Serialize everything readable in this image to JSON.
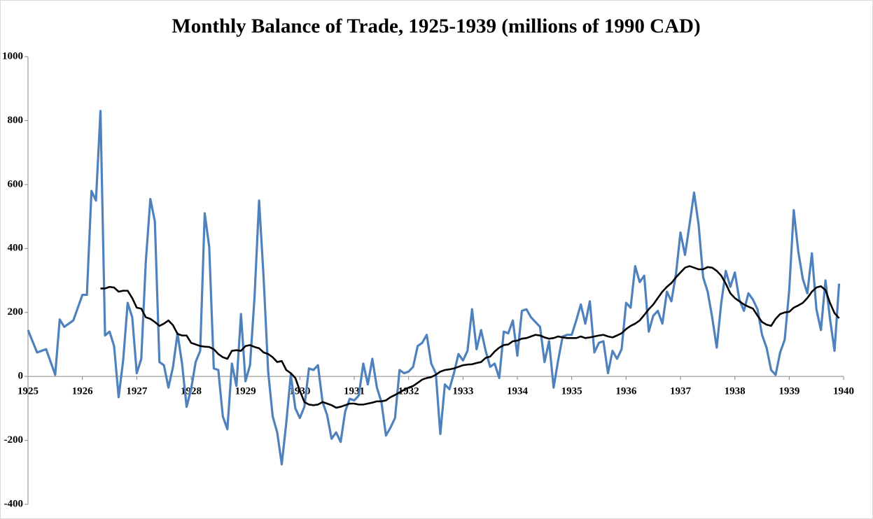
{
  "chart_data": {
    "type": "line",
    "title": "Monthly Balance of Trade, 1925-1939 (millions of 1990 CAD)",
    "xlim": [
      1925,
      1940
    ],
    "xticks": [
      1925,
      1926,
      1927,
      1928,
      1929,
      1930,
      1931,
      1932,
      1933,
      1934,
      1935,
      1936,
      1937,
      1938,
      1939,
      1940
    ],
    "ylim": [
      -400,
      1000
    ],
    "yticks": [
      -400,
      -200,
      0,
      200,
      400,
      600,
      800,
      1000
    ],
    "grid": false,
    "x": [
      1925,
      1925.083,
      1925.167,
      1925.25,
      1925.333,
      1925.417,
      1925.5,
      1925.583,
      1925.667,
      1925.75,
      1925.833,
      1925.917,
      1926,
      1926.083,
      1926.167,
      1926.25,
      1926.333,
      1926.417,
      1926.5,
      1926.583,
      1926.667,
      1926.75,
      1926.833,
      1926.917,
      1927,
      1927.083,
      1927.167,
      1927.25,
      1927.333,
      1927.417,
      1927.5,
      1927.583,
      1927.667,
      1927.75,
      1927.833,
      1927.917,
      1928,
      1928.083,
      1928.167,
      1928.25,
      1928.333,
      1928.417,
      1928.5,
      1928.583,
      1928.667,
      1928.75,
      1928.833,
      1928.917,
      1929,
      1929.083,
      1929.167,
      1929.25,
      1929.333,
      1929.417,
      1929.5,
      1929.583,
      1929.667,
      1929.75,
      1929.833,
      1929.917,
      1930,
      1930.083,
      1930.167,
      1930.25,
      1930.333,
      1930.417,
      1930.5,
      1930.583,
      1930.667,
      1930.75,
      1930.833,
      1930.917,
      1931,
      1931.083,
      1931.167,
      1931.25,
      1931.333,
      1931.417,
      1931.5,
      1931.583,
      1931.667,
      1931.75,
      1931.833,
      1931.917,
      1932,
      1932.083,
      1932.167,
      1932.25,
      1932.333,
      1932.417,
      1932.5,
      1932.583,
      1932.667,
      1932.75,
      1932.833,
      1932.917,
      1933,
      1933.083,
      1933.167,
      1933.25,
      1933.333,
      1933.417,
      1933.5,
      1933.583,
      1933.667,
      1933.75,
      1933.833,
      1933.917,
      1934,
      1934.083,
      1934.167,
      1934.25,
      1934.333,
      1934.417,
      1934.5,
      1934.583,
      1934.667,
      1934.75,
      1934.833,
      1934.917,
      1935,
      1935.083,
      1935.167,
      1935.25,
      1935.333,
      1935.417,
      1935.5,
      1935.583,
      1935.667,
      1935.75,
      1935.833,
      1935.917,
      1936,
      1936.083,
      1936.167,
      1936.25,
      1936.333,
      1936.417,
      1936.5,
      1936.583,
      1936.667,
      1936.75,
      1936.833,
      1936.917,
      1937,
      1937.083,
      1937.167,
      1937.25,
      1937.333,
      1937.417,
      1937.5,
      1937.583,
      1937.667,
      1937.75,
      1937.833,
      1937.917,
      1938,
      1938.083,
      1938.167,
      1938.25,
      1938.333,
      1938.417,
      1938.5,
      1938.583,
      1938.667,
      1938.75,
      1938.833,
      1938.917,
      1939,
      1939.083,
      1939.167,
      1939.25,
      1939.333,
      1939.417,
      1939.5,
      1939.583,
      1939.667,
      1939.75,
      1939.833,
      1939.917
    ],
    "series": [
      {
        "color": "#4f81bd",
        "values": [
          145,
          110,
          75,
          80,
          85,
          45,
          5,
          178,
          155,
          165,
          175,
          215,
          255,
          255,
          580,
          550,
          830,
          128,
          140,
          95,
          -65,
          50,
          230,
          185,
          10,
          55,
          360,
          555,
          485,
          45,
          35,
          -35,
          30,
          135,
          40,
          -95,
          -40,
          45,
          80,
          510,
          405,
          25,
          20,
          -125,
          -165,
          40,
          -30,
          195,
          -15,
          35,
          250,
          550,
          310,
          15,
          -125,
          -175,
          -275,
          -145,
          5,
          -100,
          -130,
          -95,
          25,
          20,
          35,
          -80,
          -120,
          -195,
          -175,
          -205,
          -110,
          -70,
          -75,
          -60,
          40,
          -25,
          55,
          -35,
          -80,
          -185,
          -160,
          -130,
          20,
          10,
          15,
          30,
          95,
          105,
          130,
          40,
          10,
          -180,
          -25,
          -40,
          10,
          70,
          50,
          80,
          210,
          85,
          145,
          80,
          30,
          40,
          -5,
          140,
          135,
          175,
          65,
          205,
          210,
          185,
          170,
          155,
          45,
          110,
          -35,
          50,
          125,
          130,
          130,
          175,
          225,
          165,
          235,
          75,
          105,
          110,
          10,
          80,
          55,
          85,
          230,
          215,
          345,
          295,
          315,
          140,
          190,
          205,
          165,
          265,
          235,
          320,
          450,
          380,
          475,
          575,
          475,
          310,
          265,
          185,
          90,
          230,
          330,
          280,
          325,
          240,
          205,
          260,
          240,
          210,
          130,
          90,
          20,
          5,
          75,
          115,
          270,
          520,
          390,
          305,
          260,
          385,
          210,
          145,
          300,
          180,
          80,
          290
        ]
      },
      {
        "color": "#000000",
        "values": [
          null,
          null,
          null,
          null,
          null,
          null,
          null,
          null,
          null,
          null,
          null,
          null,
          null,
          null,
          null,
          null,
          275,
          275,
          280,
          278,
          265,
          268,
          268,
          245,
          215,
          212,
          185,
          180,
          170,
          158,
          165,
          175,
          160,
          133,
          128,
          128,
          105,
          100,
          95,
          93,
          92,
          85,
          70,
          60,
          55,
          80,
          82,
          80,
          95,
          98,
          92,
          88,
          75,
          70,
          60,
          45,
          48,
          20,
          10,
          -5,
          -45,
          -80,
          -88,
          -90,
          -88,
          -80,
          -85,
          -90,
          -98,
          -95,
          -90,
          -85,
          -85,
          -88,
          -88,
          -85,
          -82,
          -78,
          -78,
          -75,
          -65,
          -58,
          -50,
          -42,
          -35,
          -30,
          -20,
          -10,
          -5,
          -2,
          5,
          15,
          20,
          22,
          25,
          30,
          35,
          37,
          38,
          42,
          45,
          58,
          62,
          78,
          90,
          98,
          100,
          110,
          112,
          118,
          120,
          125,
          130,
          128,
          122,
          118,
          120,
          125,
          122,
          120,
          120,
          120,
          125,
          120,
          122,
          125,
          128,
          130,
          125,
          122,
          128,
          135,
          148,
          158,
          165,
          175,
          192,
          210,
          225,
          245,
          265,
          280,
          292,
          310,
          325,
          340,
          345,
          340,
          335,
          335,
          342,
          340,
          330,
          315,
          290,
          260,
          245,
          235,
          225,
          218,
          212,
          190,
          170,
          162,
          158,
          180,
          195,
          200,
          202,
          215,
          222,
          230,
          245,
          265,
          278,
          282,
          270,
          230,
          198,
          182
        ]
      }
    ]
  }
}
